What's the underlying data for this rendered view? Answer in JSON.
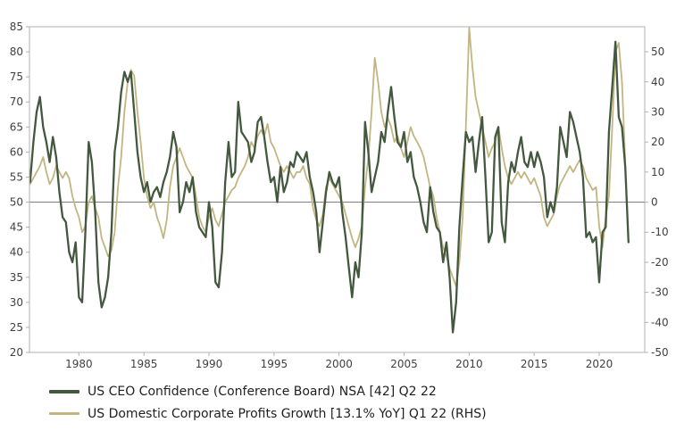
{
  "chart_data": {
    "type": "line",
    "title": "",
    "x_axis": {
      "min": 1976.2,
      "max": 2023.5,
      "ticks": [
        1980,
        1985,
        1990,
        1995,
        2000,
        2005,
        2010,
        2015,
        2020
      ]
    },
    "left_axis": {
      "min": 20,
      "max": 85,
      "ticks": [
        85,
        80,
        75,
        70,
        65,
        60,
        55,
        50,
        45,
        40,
        35,
        30,
        25,
        20
      ]
    },
    "right_axis": {
      "min": -50,
      "max": 58.33,
      "ticks": [
        50,
        40,
        30,
        20,
        10,
        0,
        -10,
        -20,
        -30,
        -40,
        -50
      ]
    },
    "zero_line_left_value": 50,
    "colors": {
      "axis_text": "#404040",
      "border": "#b0b0b0",
      "zero_line": "#7f7f7f",
      "background": "#ffffff",
      "ceo_confidence": "#43583f",
      "profits_growth": "#c2b581"
    },
    "legend_position": "bottom-left",
    "series": [
      {
        "name": "US CEO Confidence (Conference Board)",
        "label": "US CEO Confidence (Conference Board) NSA [42] Q2 22",
        "axis": "left",
        "color": "#43583f",
        "latest_value": 42,
        "latest_period": "Q2 22",
        "start": 1976.25,
        "step": 0.25,
        "values": [
          54,
          62,
          68,
          71,
          65,
          62,
          58,
          63,
          59,
          52,
          47,
          46,
          40,
          38,
          42,
          31,
          30,
          44,
          62,
          58,
          48,
          34,
          29,
          31,
          35,
          44,
          60,
          65,
          72,
          76,
          74,
          76,
          68,
          60,
          55,
          52,
          54,
          50,
          52,
          53,
          51,
          54,
          56,
          59,
          64,
          61,
          48,
          50,
          54,
          52,
          55,
          48,
          45,
          44,
          43,
          50,
          45,
          34,
          33,
          40,
          54,
          62,
          55,
          56,
          70,
          64,
          63,
          62,
          58,
          60,
          66,
          67,
          63,
          58,
          54,
          55,
          50,
          57,
          52,
          54,
          58,
          57,
          60,
          59,
          58,
          60,
          55,
          52,
          48,
          40,
          46,
          52,
          56,
          54,
          53,
          55,
          48,
          43,
          37,
          31,
          38,
          35,
          44,
          66,
          60,
          52,
          55,
          58,
          64,
          62,
          68,
          73,
          67,
          62,
          61,
          64,
          58,
          60,
          55,
          53,
          50,
          46,
          44,
          53,
          48,
          45,
          44,
          38,
          42,
          35,
          24,
          30,
          45,
          55,
          64,
          62,
          63,
          56,
          62,
          67,
          55,
          42,
          44,
          63,
          65,
          46,
          42,
          54,
          58,
          56,
          60,
          63,
          58,
          57,
          60,
          57,
          60,
          58,
          55,
          47,
          50,
          48,
          53,
          65,
          62,
          59,
          68,
          66,
          63,
          60,
          55,
          43,
          44,
          42,
          43,
          34,
          44,
          45,
          64,
          73,
          82,
          67,
          65,
          57,
          42
        ]
      },
      {
        "name": "US Domestic Corporate Profits Growth",
        "label": "US Domestic Corporate Profits Growth [13.1% YoY] Q1 22 (RHS)",
        "axis": "right",
        "color": "#c2b581",
        "latest_value": 13.1,
        "latest_period": "Q1 22",
        "start": 1976.25,
        "step": 0.25,
        "values": [
          6,
          8,
          10,
          12,
          15,
          10,
          6,
          8,
          12,
          10,
          8,
          10,
          8,
          2,
          -2,
          -5,
          -10,
          -8,
          0,
          2,
          -2,
          -5,
          -12,
          -15,
          -18,
          -16,
          -10,
          5,
          15,
          30,
          40,
          44,
          42,
          30,
          20,
          8,
          2,
          -2,
          0,
          -5,
          -8,
          -12,
          -6,
          5,
          12,
          15,
          18,
          15,
          12,
          10,
          8,
          2,
          -5,
          -8,
          -10,
          -5,
          -2,
          -6,
          -8,
          -4,
          0,
          2,
          4,
          5,
          8,
          10,
          12,
          15,
          20,
          18,
          22,
          24,
          22,
          26,
          20,
          18,
          15,
          12,
          10,
          12,
          10,
          8,
          10,
          10,
          12,
          8,
          6,
          -2,
          -6,
          -8,
          -4,
          5,
          8,
          6,
          4,
          2,
          0,
          -4,
          -8,
          -12,
          -15,
          -12,
          -8,
          5,
          15,
          30,
          48,
          40,
          30,
          25,
          28,
          25,
          20,
          22,
          18,
          15,
          20,
          25,
          22,
          20,
          18,
          15,
          10,
          5,
          2,
          -5,
          -10,
          -15,
          -18,
          -22,
          -25,
          -28,
          -20,
          -5,
          25,
          58,
          45,
          35,
          30,
          25,
          20,
          15,
          18,
          20,
          25,
          18,
          12,
          8,
          6,
          8,
          10,
          8,
          10,
          8,
          6,
          8,
          5,
          2,
          -5,
          -8,
          -6,
          -4,
          2,
          6,
          8,
          10,
          12,
          10,
          12,
          14,
          12,
          8,
          6,
          4,
          5,
          -8,
          -15,
          -5,
          2,
          25,
          50,
          53,
          40,
          13.1
        ]
      }
    ]
  }
}
